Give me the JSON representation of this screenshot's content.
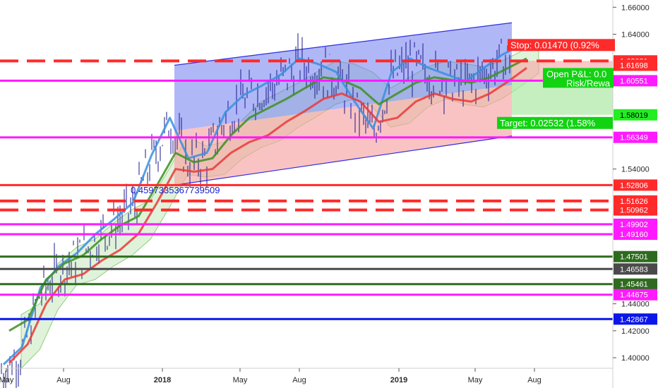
{
  "chart_data": {
    "type": "line",
    "title": "",
    "xlabel": "",
    "ylabel": "",
    "x_ticks": [
      "May",
      "Aug",
      "2018",
      "May",
      "Aug",
      "2019",
      "May",
      "Aug"
    ],
    "y_ticks": [
      "1.66000",
      "1.64000",
      "1.54000",
      "1.44000",
      "1.42000",
      "1.40000"
    ],
    "ylim": [
      1.388,
      1.668
    ],
    "grid": false,
    "colors": {
      "red": "#ff2a2a",
      "magenta": "#ff1aff",
      "dark_green": "#2e6b1e",
      "green": "#22ee22",
      "blue": "#0b16e8",
      "grey": "#4a4a4a",
      "price": "#1a1a8c",
      "ichimoku_blue": "#3a8fdf",
      "ichimoku_green": "#3f8f22",
      "ichimoku_red": "#e93a3a",
      "cloud_green": "#8fd07a"
    },
    "horizontal_levels": [
      {
        "value": 1.62021,
        "label": "1.62021",
        "color": "#ff2a2a",
        "style": "dashed"
      },
      {
        "value": 1.60551,
        "label": "1.60551",
        "color": "#ff1aff",
        "style": "solid"
      },
      {
        "value": 1.56349,
        "label": "1.56349",
        "color": "#ff1aff",
        "style": "solid"
      },
      {
        "value": 1.52806,
        "label": "1.52806",
        "color": "#ff2a2a",
        "style": "solid"
      },
      {
        "value": 1.51626,
        "label": "1.51626",
        "color": "#ff2a2a",
        "style": "dashed"
      },
      {
        "value": 1.50962,
        "label": "1.50962",
        "color": "#ff2a2a",
        "style": "dashed"
      },
      {
        "value": 1.49902,
        "label": "1.49902",
        "color": "#ff1aff",
        "style": "solid"
      },
      {
        "value": 1.4916,
        "label": "1.49160",
        "color": "#ff1aff",
        "style": "solid"
      },
      {
        "value": 1.47501,
        "label": "1.47501",
        "color": "#2e6b1e",
        "style": "solid"
      },
      {
        "value": 1.46583,
        "label": "1.46583",
        "color": "#4a4a4a",
        "style": "solid"
      },
      {
        "value": 1.45461,
        "label": "1.45461",
        "color": "#2e6b1e",
        "style": "solid"
      },
      {
        "value": 1.44675,
        "label": "1.44675",
        "color": "#ff1aff",
        "style": "solid"
      },
      {
        "value": 1.42867,
        "label": "1.42867",
        "color": "#0b16e8",
        "style": "solid"
      }
    ],
    "extra_price_tags": [
      {
        "value": 1.61698,
        "label": "1.61698",
        "color": "#ff2a2a"
      },
      {
        "value": 1.58019,
        "label": "1.58019",
        "color": "#22ee22"
      }
    ],
    "channel": {
      "upper_start": 1.61698,
      "upper_end": 1.6485,
      "lower_start": 1.528,
      "lower_end": 1.5645,
      "label": "0.4597335367739509"
    },
    "position": {
      "entry": 1.60551,
      "stop": 1.62021,
      "target": 1.58019,
      "stop_label": "Stop: 0.01470 (0.92%",
      "target_label": "Target: 0.02532 (1.58%",
      "pnl_label": "Open P&L: 0.0",
      "rr_label": "Risk/Rewa"
    },
    "series": [
      {
        "values": [
          1.395,
          1.408,
          1.452,
          1.468,
          1.478,
          1.492,
          1.503,
          1.515,
          1.55,
          1.578,
          1.548,
          1.552,
          1.582,
          1.595,
          1.602,
          1.61,
          1.622,
          1.618,
          1.612,
          1.59,
          1.57,
          1.612,
          1.622,
          1.615,
          1.61,
          1.605,
          1.615,
          1.625,
          1.632
        ]
      },
      {
        "values": [
          1.42,
          1.428,
          1.458,
          1.47,
          1.476,
          1.488,
          1.498,
          1.505,
          1.528,
          1.552,
          1.545,
          1.548,
          1.565,
          1.578,
          1.585,
          1.592,
          1.6,
          1.608,
          1.606,
          1.6,
          1.588,
          1.596,
          1.604,
          1.608,
          1.606,
          1.604,
          1.608,
          1.615,
          1.622
        ]
      },
      {
        "values": [
          1.396,
          1.41,
          1.44,
          1.458,
          1.462,
          1.472,
          1.48,
          1.492,
          1.515,
          1.54,
          1.538,
          1.54,
          1.552,
          1.56,
          1.565,
          1.575,
          1.583,
          1.592,
          1.596,
          1.59,
          1.575,
          1.578,
          1.59,
          1.596,
          1.592,
          1.59,
          1.596,
          1.605,
          1.615
        ]
      }
    ]
  }
}
